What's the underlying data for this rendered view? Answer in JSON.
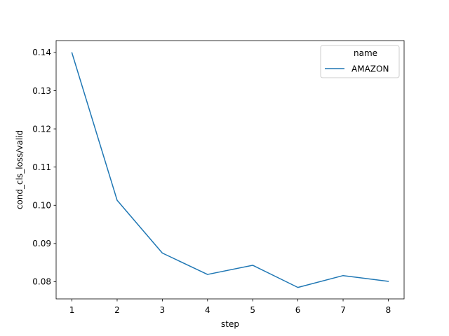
{
  "chart_data": {
    "type": "line",
    "xlabel": "step",
    "ylabel": "cond_cls_loss/valid",
    "xlim": [
      0.65,
      8.35
    ],
    "ylim": [
      0.0755,
      0.1431
    ],
    "x_ticks": [
      1,
      2,
      3,
      4,
      5,
      6,
      7,
      8
    ],
    "y_ticks": [
      0.08,
      0.09,
      0.1,
      0.11,
      0.12,
      0.13,
      0.14
    ],
    "y_tick_labels": [
      "0.08",
      "0.09",
      "0.10",
      "0.11",
      "0.12",
      "0.13",
      "0.14"
    ],
    "grid": false,
    "legend": {
      "title": "name",
      "placement": "top-right"
    },
    "series": [
      {
        "name": "AMAZON",
        "color": "#1f77b4",
        "x": [
          1,
          2,
          3,
          4,
          5,
          6,
          7,
          8
        ],
        "y": [
          0.1399,
          0.1013,
          0.0875,
          0.0819,
          0.0843,
          0.0785,
          0.0816,
          0.0801
        ]
      }
    ]
  }
}
